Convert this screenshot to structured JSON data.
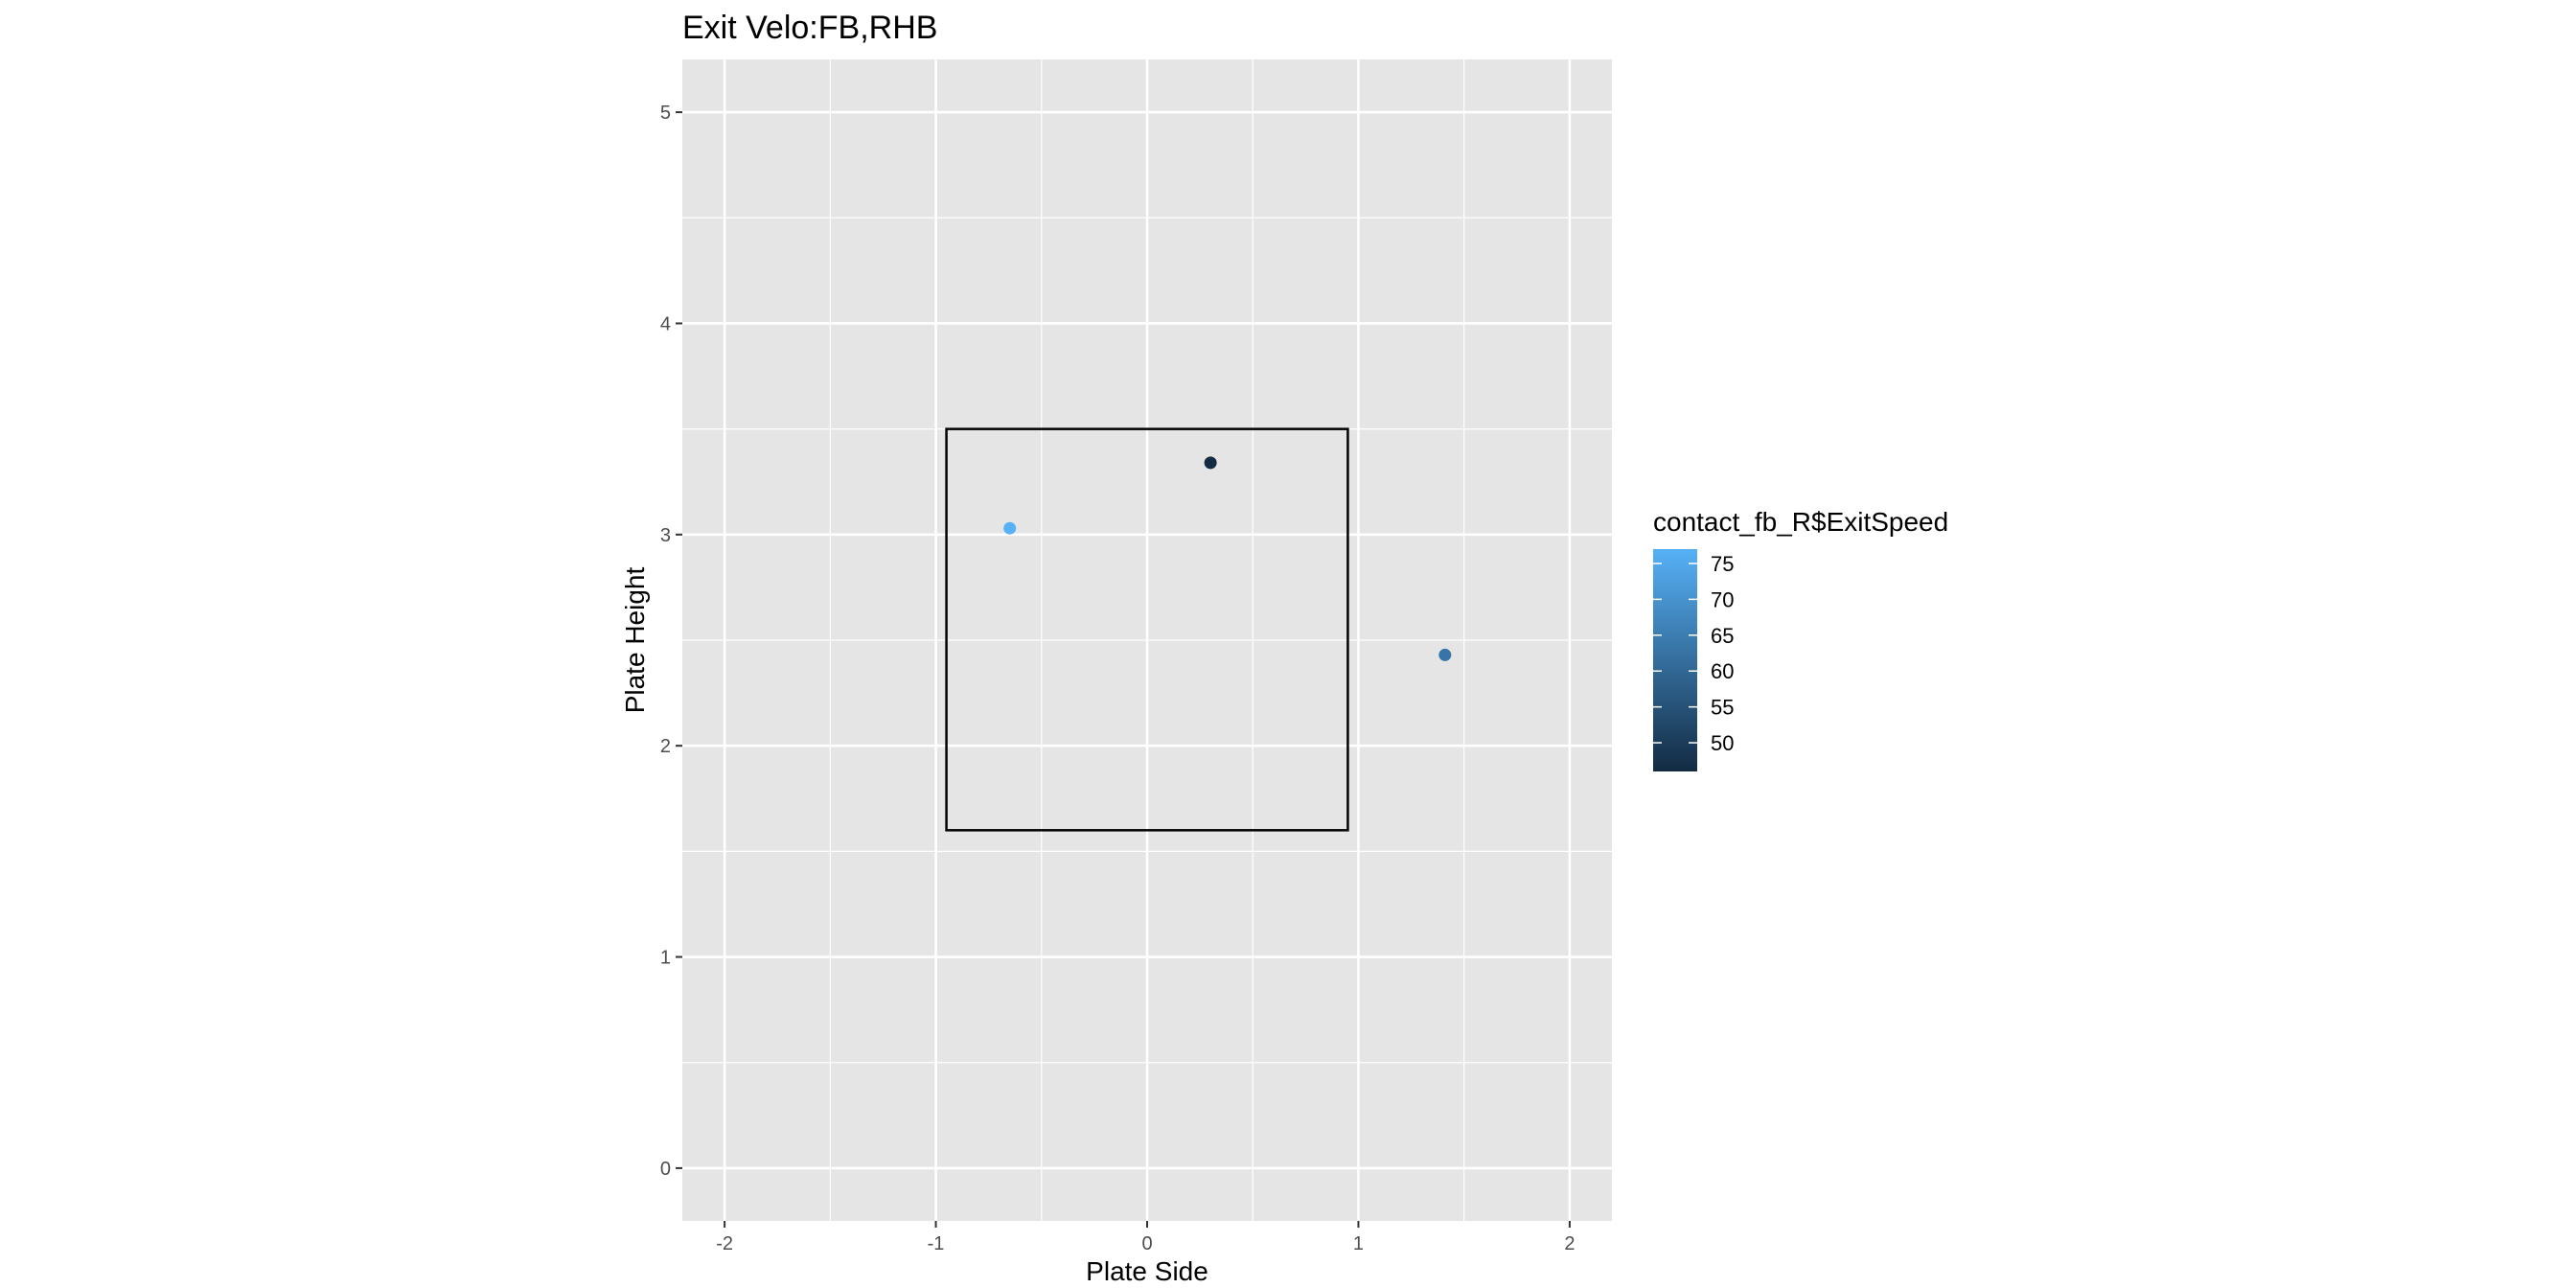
{
  "chart_data": {
    "type": "scatter",
    "title": "Exit Velo:FB,RHB",
    "xlabel": "Plate Side",
    "ylabel": "Plate Height",
    "xlim": [
      -2.2,
      2.2
    ],
    "ylim": [
      -0.25,
      5.25
    ],
    "x_ticks": [
      -2,
      -1,
      0,
      1,
      2
    ],
    "y_ticks": [
      0,
      1,
      2,
      3,
      4,
      5
    ],
    "x_tick_labels": [
      "-2",
      "-1",
      "0",
      "1",
      "2"
    ],
    "y_tick_labels": [
      "0",
      "1",
      "2",
      "3",
      "4",
      "5"
    ],
    "grid": true,
    "strike_zone": {
      "x": [
        -0.95,
        0.95
      ],
      "y": [
        1.6,
        3.5
      ],
      "color": "#000000"
    },
    "points": [
      {
        "x": -0.65,
        "y": 3.03,
        "value": 77
      },
      {
        "x": 0.3,
        "y": 3.34,
        "value": 46
      },
      {
        "x": 1.41,
        "y": 2.43,
        "value": 63
      }
    ],
    "legend": {
      "title": "contact_fb_R$ExitSpeed",
      "placement": "right",
      "min": 46,
      "max": 77,
      "breaks": [
        75,
        70,
        65,
        60,
        55,
        50
      ],
      "break_labels": [
        "75",
        "70",
        "65",
        "60",
        "55",
        "50"
      ],
      "low_color": "#132b43",
      "high_color": "#56b1f7"
    },
    "panel_color": "#e5e5e5",
    "grid_color": "#ffffff"
  }
}
